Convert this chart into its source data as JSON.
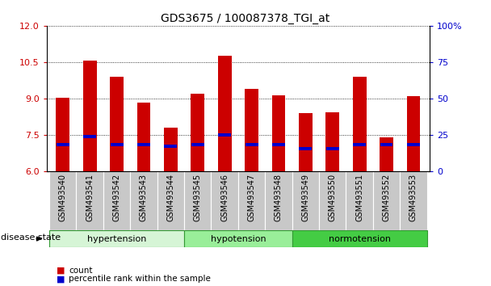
{
  "title": "GDS3675 / 100087378_TGI_at",
  "samples": [
    "GSM493540",
    "GSM493541",
    "GSM493542",
    "GSM493543",
    "GSM493544",
    "GSM493545",
    "GSM493546",
    "GSM493547",
    "GSM493548",
    "GSM493549",
    "GSM493550",
    "GSM493551",
    "GSM493552",
    "GSM493553"
  ],
  "count_values": [
    9.05,
    10.55,
    9.9,
    8.85,
    7.8,
    9.2,
    10.75,
    9.4,
    9.15,
    8.4,
    8.45,
    9.9,
    7.4,
    9.1
  ],
  "percentile_values": [
    7.1,
    7.45,
    7.1,
    7.1,
    7.05,
    7.1,
    7.5,
    7.1,
    7.1,
    6.95,
    6.95,
    7.1,
    7.1,
    7.1
  ],
  "y_min": 6,
  "y_max": 12,
  "y_ticks": [
    6,
    7.5,
    9,
    10.5,
    12
  ],
  "y2_ticks": [
    0,
    25,
    50,
    75,
    100
  ],
  "disease_groups": [
    {
      "name": "hypertension",
      "start": 0,
      "end": 4,
      "color": "#d6f5d6"
    },
    {
      "name": "hypotension",
      "start": 5,
      "end": 8,
      "color": "#99ee99"
    },
    {
      "name": "normotension",
      "start": 9,
      "end": 13,
      "color": "#44cc44"
    }
  ],
  "bar_color": "#cc0000",
  "percentile_color": "#0000cc",
  "bar_width": 0.5,
  "tick_label_size": 7,
  "axis_label_color_left": "#cc0000",
  "axis_label_color_right": "#0000cc",
  "background_color": "#ffffff",
  "plot_bg_color": "#ffffff",
  "sample_box_color": "#c8c8c8"
}
